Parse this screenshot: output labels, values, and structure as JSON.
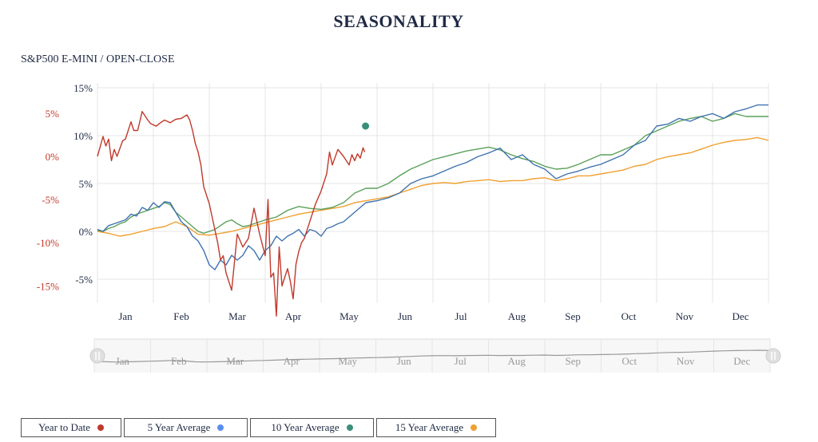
{
  "title": "SEASONALITY",
  "subtitle": "S&P500 E-MINI / OPEN-CLOSE",
  "colors": {
    "ytd": "#c0392b",
    "y5": "#3f72af",
    "y10": "#5aa05a",
    "y15": "#f0a030",
    "marker": "#3a8f7a",
    "grid": "#e4e4e4",
    "axis_left": "#c0392b",
    "axis_right": "#1f2a44"
  },
  "legend": [
    {
      "label": "Year to Date",
      "color": "#c0392b"
    },
    {
      "label": "5 Year Average",
      "color": "#5b8def"
    },
    {
      "label": "10 Year Average",
      "color": "#3a8f7a"
    },
    {
      "label": "15 Year Average",
      "color": "#f0a030"
    }
  ],
  "chart_data": {
    "type": "line",
    "title": "SEASONALITY",
    "subtitle": "S&P500 E-MINI / OPEN-CLOSE",
    "x_range": [
      0,
      12
    ],
    "months": [
      "Jan",
      "Feb",
      "Mar",
      "Apr",
      "May",
      "Jun",
      "Jul",
      "Aug",
      "Sep",
      "Oct",
      "Nov",
      "Dec"
    ],
    "left_axis": {
      "ticks": [
        "5%",
        "0%",
        "-5%",
        "-10%",
        "-15%"
      ],
      "values": [
        5,
        0,
        -5,
        -10,
        -15
      ],
      "range": [
        -17,
        8.5
      ]
    },
    "right_axis": {
      "ticks": [
        "15%",
        "10%",
        "5%",
        "0%",
        "-5%"
      ],
      "values": [
        15,
        10,
        5,
        0,
        -5
      ],
      "range": [
        -7.5,
        15.5
      ]
    },
    "series": [
      {
        "name": "Year to Date",
        "axis": "left",
        "x": [
          0,
          0.1,
          0.15,
          0.2,
          0.25,
          0.3,
          0.35,
          0.45,
          0.5,
          0.6,
          0.65,
          0.72,
          0.8,
          0.9,
          0.95,
          1.05,
          1.15,
          1.2,
          1.3,
          1.4,
          1.5,
          1.6,
          1.65,
          1.7,
          1.75,
          1.8,
          1.85,
          1.9,
          2.0,
          2.1,
          2.15,
          2.2,
          2.25,
          2.3,
          2.4,
          2.5,
          2.6,
          2.7,
          2.8,
          2.85,
          2.9,
          3.0,
          3.05,
          3.1,
          3.15,
          3.2,
          3.25,
          3.3,
          3.35,
          3.4,
          3.45,
          3.5,
          3.55,
          3.6,
          3.65,
          3.7,
          3.8,
          3.9,
          4.0,
          4.1,
          4.15,
          4.2,
          4.3,
          4.4,
          4.5,
          4.55,
          4.6,
          4.65,
          4.7,
          4.75,
          4.78
        ],
        "y": [
          0,
          2.3,
          1.2,
          2.0,
          -0.5,
          0.8,
          0.0,
          1.8,
          2.0,
          4.0,
          3.0,
          3.0,
          5.2,
          4.2,
          3.8,
          3.5,
          4.0,
          4.2,
          3.9,
          4.3,
          4.4,
          4.8,
          4.2,
          3.0,
          1.5,
          0.5,
          -1.0,
          -3.5,
          -5.5,
          -8.5,
          -10.0,
          -12.0,
          -11.5,
          -13.5,
          -15.5,
          -9.0,
          -10.5,
          -9.5,
          -6.0,
          -7.5,
          -9.0,
          -11.5,
          -5.0,
          -14.0,
          -13.5,
          -18.5,
          -10.5,
          -15.0,
          -14.0,
          -13.0,
          -14.5,
          -16.5,
          -12.5,
          -11.0,
          -10.0,
          -9.5,
          -7.5,
          -5.5,
          -4.0,
          -2.0,
          0.5,
          -1.0,
          0.8,
          0.0,
          -1.0,
          0.2,
          -0.5,
          0.3,
          -0.2,
          1.0,
          0.5
        ]
      },
      {
        "name": "5 Year Average",
        "axis": "right",
        "x": [
          0,
          0.1,
          0.2,
          0.3,
          0.4,
          0.5,
          0.6,
          0.7,
          0.8,
          0.9,
          1.0,
          1.1,
          1.2,
          1.3,
          1.4,
          1.5,
          1.6,
          1.7,
          1.8,
          1.9,
          2.0,
          2.1,
          2.2,
          2.3,
          2.4,
          2.5,
          2.6,
          2.7,
          2.8,
          2.9,
          3.0,
          3.1,
          3.2,
          3.3,
          3.4,
          3.5,
          3.6,
          3.7,
          3.8,
          3.9,
          4.0,
          4.1,
          4.2,
          4.3,
          4.4,
          4.5,
          4.6,
          4.7,
          4.8,
          5.0,
          5.2,
          5.4,
          5.6,
          5.8,
          6.0,
          6.2,
          6.4,
          6.6,
          6.8,
          7.0,
          7.2,
          7.4,
          7.6,
          7.8,
          8.0,
          8.2,
          8.4,
          8.6,
          8.8,
          9.0,
          9.2,
          9.4,
          9.6,
          9.8,
          10.0,
          10.2,
          10.4,
          10.6,
          10.8,
          11.0,
          11.2,
          11.4,
          11.6,
          11.8,
          12.0
        ],
        "y": [
          0.2,
          0.0,
          0.6,
          0.8,
          1.0,
          1.2,
          1.8,
          1.6,
          2.5,
          2.2,
          3.0,
          2.5,
          3.1,
          3.0,
          2.0,
          1.0,
          0.5,
          -0.5,
          -1.0,
          -2.0,
          -3.5,
          -4.0,
          -3.0,
          -3.5,
          -2.5,
          -3.0,
          -2.5,
          -1.5,
          -2.0,
          -3.0,
          -2.0,
          -1.5,
          -0.5,
          -1.0,
          -0.5,
          -0.2,
          0.2,
          -0.5,
          0.2,
          0.0,
          -0.5,
          0.3,
          0.5,
          0.8,
          1.0,
          1.5,
          2.0,
          2.5,
          3.0,
          3.2,
          3.5,
          4.0,
          5.0,
          5.5,
          5.8,
          6.3,
          6.8,
          7.2,
          7.8,
          8.2,
          8.7,
          7.5,
          8.0,
          7.0,
          6.5,
          5.5,
          6.0,
          6.3,
          6.7,
          7.0,
          7.5,
          8.0,
          9.0,
          9.5,
          11.0,
          11.2,
          11.8,
          11.5,
          12.0,
          12.3,
          11.8,
          12.5,
          12.8,
          13.2,
          13.2
        ]
      },
      {
        "name": "10 Year Average",
        "axis": "right",
        "x": [
          0,
          0.1,
          0.2,
          0.3,
          0.4,
          0.5,
          0.6,
          0.7,
          0.8,
          0.9,
          1.0,
          1.1,
          1.2,
          1.3,
          1.4,
          1.5,
          1.6,
          1.7,
          1.8,
          1.9,
          2.0,
          2.1,
          2.2,
          2.3,
          2.4,
          2.5,
          2.6,
          2.7,
          2.8,
          2.9,
          3.0,
          3.2,
          3.4,
          3.6,
          3.8,
          4.0,
          4.2,
          4.4,
          4.6,
          4.8,
          5.0,
          5.2,
          5.4,
          5.6,
          5.8,
          6.0,
          6.2,
          6.4,
          6.6,
          6.8,
          7.0,
          7.2,
          7.4,
          7.6,
          7.8,
          8.0,
          8.2,
          8.4,
          8.6,
          8.8,
          9.0,
          9.2,
          9.4,
          9.6,
          9.8,
          10.0,
          10.2,
          10.4,
          10.6,
          10.8,
          11.0,
          11.2,
          11.4,
          11.6,
          11.8,
          12.0
        ],
        "y": [
          0.1,
          0.0,
          0.3,
          0.5,
          0.8,
          1.0,
          1.5,
          1.8,
          2.0,
          2.2,
          2.4,
          2.6,
          3.0,
          2.8,
          2.0,
          1.5,
          1.0,
          0.5,
          0.0,
          -0.2,
          0.0,
          0.2,
          0.6,
          1.0,
          1.2,
          0.8,
          0.5,
          0.6,
          0.8,
          1.0,
          1.2,
          1.5,
          2.2,
          2.6,
          2.4,
          2.3,
          2.5,
          3.0,
          4.0,
          4.5,
          4.5,
          5.0,
          5.8,
          6.5,
          7.0,
          7.5,
          7.8,
          8.1,
          8.4,
          8.6,
          8.8,
          8.5,
          8.0,
          7.6,
          7.3,
          6.8,
          6.5,
          6.6,
          7.0,
          7.5,
          8.0,
          8.0,
          8.5,
          9.0,
          10.0,
          10.5,
          11.0,
          11.5,
          11.8,
          12.0,
          11.5,
          11.8,
          12.3,
          12.0,
          12.0,
          12.0
        ]
      },
      {
        "name": "15 Year Average",
        "axis": "right",
        "x": [
          0,
          0.2,
          0.4,
          0.6,
          0.8,
          1.0,
          1.2,
          1.4,
          1.6,
          1.8,
          2.0,
          2.2,
          2.4,
          2.6,
          2.8,
          3.0,
          3.2,
          3.4,
          3.6,
          3.8,
          4.0,
          4.2,
          4.4,
          4.6,
          4.8,
          5.0,
          5.2,
          5.4,
          5.6,
          5.8,
          6.0,
          6.2,
          6.4,
          6.6,
          6.8,
          7.0,
          7.2,
          7.4,
          7.6,
          7.8,
          8.0,
          8.2,
          8.4,
          8.6,
          8.8,
          9.0,
          9.2,
          9.4,
          9.6,
          9.8,
          10.0,
          10.2,
          10.4,
          10.6,
          10.8,
          11.0,
          11.2,
          11.4,
          11.6,
          11.8,
          12.0
        ],
        "y": [
          0.0,
          -0.2,
          -0.5,
          -0.3,
          0.0,
          0.3,
          0.5,
          1.0,
          0.5,
          -0.3,
          -0.4,
          -0.2,
          0.0,
          0.3,
          0.6,
          0.9,
          1.2,
          1.5,
          1.8,
          2.0,
          2.2,
          2.4,
          2.6,
          3.0,
          3.2,
          3.4,
          3.6,
          4.0,
          4.4,
          4.8,
          5.0,
          5.1,
          5.0,
          5.2,
          5.3,
          5.4,
          5.2,
          5.3,
          5.3,
          5.5,
          5.6,
          5.3,
          5.5,
          5.8,
          5.8,
          6.0,
          6.2,
          6.4,
          6.8,
          7.0,
          7.5,
          7.8,
          8.0,
          8.2,
          8.6,
          9.0,
          9.3,
          9.5,
          9.6,
          9.8,
          9.5
        ]
      }
    ],
    "navigator": {
      "months": [
        "Jan",
        "Feb",
        "Mar",
        "Apr",
        "May",
        "Jun",
        "Jul",
        "Aug",
        "Sep",
        "Oct",
        "Nov",
        "Dec"
      ]
    }
  }
}
